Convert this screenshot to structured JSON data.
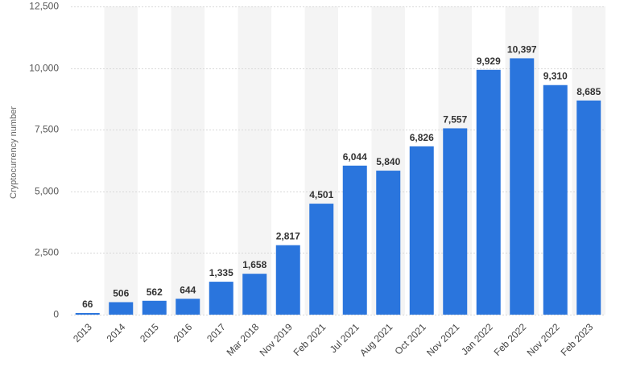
{
  "chart_data": {
    "type": "bar",
    "title": "",
    "xlabel": "",
    "ylabel": "Cryptocurrency number",
    "ylim": [
      0,
      12500
    ],
    "yticks": [
      0,
      2500,
      5000,
      7500,
      10000,
      12500
    ],
    "ytick_labels": [
      "0",
      "2,500",
      "5,000",
      "7,500",
      "10,000",
      "12,500"
    ],
    "grid": true,
    "legend": "none",
    "bar_color": "#2a75dd",
    "categories": [
      "2013",
      "2014",
      "2015",
      "2016",
      "2017",
      "Mar 2018",
      "Nov 2019",
      "Feb 2021",
      "Jul 2021",
      "Aug 2021",
      "Oct 2021",
      "Nov 2021",
      "Jan 2022",
      "Feb 2022",
      "Nov 2022",
      "Feb 2023"
    ],
    "values": [
      66,
      506,
      562,
      644,
      1335,
      1658,
      2817,
      4501,
      6044,
      5840,
      6826,
      7557,
      9929,
      10397,
      9310,
      8685
    ],
    "value_labels": [
      "66",
      "506",
      "562",
      "644",
      "1,335",
      "1,658",
      "2,817",
      "4,501",
      "6,044",
      "5,840",
      "6,826",
      "7,557",
      "9,929",
      "10,397",
      "9,310",
      "8,685"
    ]
  }
}
